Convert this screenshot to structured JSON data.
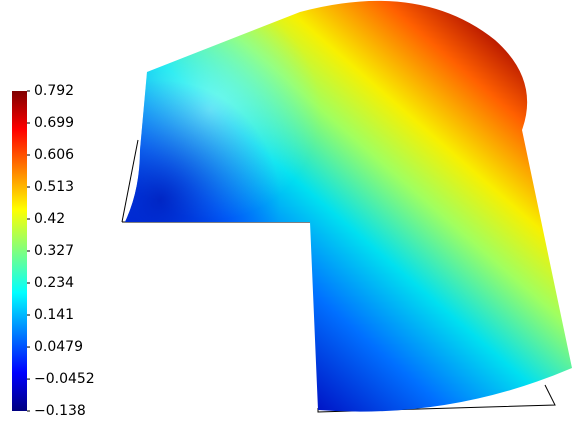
{
  "chart_data": {
    "type": "colorbar",
    "ylim": [
      -0.138,
      0.792
    ],
    "yticks": [
      0.792,
      0.699,
      0.606,
      0.513,
      0.42,
      0.327,
      0.234,
      0.141,
      0.0479,
      {
        "value": -0.0452,
        "label": "−0.0452"
      },
      {
        "value": -0.138,
        "label": "−0.138"
      }
    ]
  }
}
